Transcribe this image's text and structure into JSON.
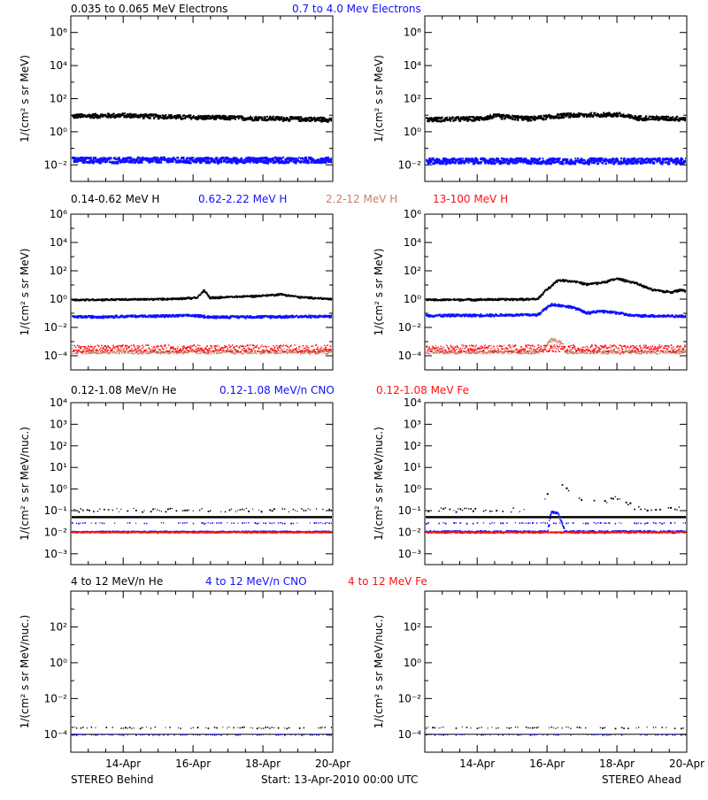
{
  "colors": {
    "black": "#000000",
    "blue": "#1010ff",
    "tan": "#c8806a",
    "red": "#ff1010"
  },
  "headers": [
    [
      {
        "text": "0.035 to 0.065 MeV Electrons",
        "color": "black"
      },
      {
        "text": "0.7 to 4.0 Mev Electrons",
        "color": "blue"
      }
    ],
    [
      {
        "text": "0.14-0.62 MeV H",
        "color": "black"
      },
      {
        "text": "0.62-2.22 MeV H",
        "color": "blue"
      },
      {
        "text": "2.2-12 MeV H",
        "color": "tan"
      },
      {
        "text": "13-100 MeV H",
        "color": "red"
      }
    ],
    [
      {
        "text": "0.12-1.08 MeV/n He",
        "color": "black"
      },
      {
        "text": "0.12-1.08 MeV/n CNO",
        "color": "blue"
      },
      {
        "text": "0.12-1.08 MeV Fe",
        "color": "red"
      }
    ],
    [
      {
        "text": "4 to 12 MeV/n He",
        "color": "black"
      },
      {
        "text": "4 to 12 MeV/n CNO",
        "color": "blue"
      },
      {
        "text": "4 to 12 MeV Fe",
        "color": "red"
      }
    ]
  ],
  "footer": {
    "left": "STEREO Behind",
    "center": "Start: 13-Apr-2010 00:00 UTC",
    "right": "STEREO Ahead"
  },
  "x_ticks": [
    {
      "day": 1.5,
      "label": "14-Apr"
    },
    {
      "day": 3.5,
      "label": "16-Apr"
    },
    {
      "day": 5.5,
      "label": "18-Apr"
    },
    {
      "day": 7.5,
      "label": "20-Apr"
    }
  ],
  "chart_data": [
    {
      "id": "electrons-behind",
      "type": "scatter",
      "row": 0,
      "col": 0,
      "ylabel": "1/(cm² s sr MeV)",
      "ylog_range": [
        -3,
        7
      ],
      "y_ticks": [
        {
          "e": -2,
          "label": "10⁻²"
        },
        {
          "e": 0,
          "label": "10⁰"
        },
        {
          "e": 2,
          "label": "10²"
        },
        {
          "e": 4,
          "label": "10⁴"
        },
        {
          "e": 6,
          "label": "10⁶"
        }
      ],
      "xlim_days": [
        0,
        7.5
      ],
      "series": [
        {
          "color": "black",
          "points": [
            [
              0,
              1.0
            ],
            [
              1.5,
              1.05
            ],
            [
              3,
              0.95
            ],
            [
              4.5,
              0.9
            ],
            [
              6,
              0.85
            ],
            [
              7.5,
              0.8
            ]
          ],
          "scatter": 0.12,
          "width": 2.2
        },
        {
          "color": "blue",
          "points": [
            [
              0,
              -1.65
            ],
            [
              7.5,
              -1.65
            ]
          ],
          "scatter": 0.16,
          "width": 2.6
        }
      ]
    },
    {
      "id": "electrons-ahead",
      "type": "scatter",
      "row": 0,
      "col": 1,
      "ylabel": "1/(cm² s sr MeV)",
      "ylog_range": [
        -3,
        7
      ],
      "y_ticks": [
        {
          "e": -2,
          "label": "10⁻²"
        },
        {
          "e": 0,
          "label": "10⁰"
        },
        {
          "e": 2,
          "label": "10²"
        },
        {
          "e": 4,
          "label": "10⁴"
        },
        {
          "e": 6,
          "label": "10⁶"
        }
      ],
      "xlim_days": [
        0,
        7.5
      ],
      "series": [
        {
          "color": "black",
          "points": [
            [
              0,
              0.8
            ],
            [
              1.5,
              0.85
            ],
            [
              2.0,
              1.0
            ],
            [
              3,
              0.85
            ],
            [
              4,
              1.05
            ],
            [
              5.5,
              1.1
            ],
            [
              6,
              0.9
            ],
            [
              7.5,
              0.85
            ]
          ],
          "scatter": 0.12,
          "width": 2.2
        },
        {
          "color": "blue",
          "points": [
            [
              0,
              -1.7
            ],
            [
              7.5,
              -1.7
            ]
          ],
          "scatter": 0.16,
          "width": 2.6
        }
      ]
    },
    {
      "id": "protons-behind",
      "type": "scatter",
      "row": 1,
      "col": 0,
      "ylabel": "1/(cm² s sr MeV)",
      "ylog_range": [
        -5,
        6
      ],
      "y_ticks": [
        {
          "e": -4,
          "label": "10⁻⁴"
        },
        {
          "e": -2,
          "label": "10⁻²"
        },
        {
          "e": 0,
          "label": "10⁰"
        },
        {
          "e": 2,
          "label": "10²"
        },
        {
          "e": 4,
          "label": "10⁴"
        },
        {
          "e": 6,
          "label": "10⁶"
        }
      ],
      "xlim_days": [
        0,
        7.5
      ],
      "series": [
        {
          "color": "black",
          "points": [
            [
              0,
              0.0
            ],
            [
              2.5,
              0.05
            ],
            [
              3.6,
              0.15
            ],
            [
              3.8,
              0.7
            ],
            [
              3.95,
              0.15
            ],
            [
              5.5,
              0.3
            ],
            [
              6,
              0.4
            ],
            [
              6.5,
              0.2
            ],
            [
              7.5,
              0.05
            ]
          ],
          "scatter": 0.05,
          "width": 1.8
        },
        {
          "color": "blue",
          "points": [
            [
              0,
              -1.2
            ],
            [
              3.5,
              -1.1
            ],
            [
              4,
              -1.2
            ],
            [
              7.5,
              -1.15
            ]
          ],
          "scatter": 0.07,
          "width": 2.0
        },
        {
          "color": "tan",
          "points": [
            [
              0,
              -3.7
            ],
            [
              7.5,
              -3.7
            ]
          ],
          "scatter": 0.12,
          "width": 1.4
        },
        {
          "color": "red",
          "points": [
            [
              0,
              -3.45
            ],
            [
              7.5,
              -3.45
            ]
          ],
          "scatter": 0.25,
          "width": 1.4
        }
      ]
    },
    {
      "id": "protons-ahead",
      "type": "scatter",
      "row": 1,
      "col": 1,
      "ylabel": "1/(cm² s sr MeV)",
      "ylog_range": [
        -5,
        6
      ],
      "y_ticks": [
        {
          "e": -4,
          "label": "10⁻⁴"
        },
        {
          "e": -2,
          "label": "10⁻²"
        },
        {
          "e": 0,
          "label": "10⁰"
        },
        {
          "e": 2,
          "label": "10²"
        },
        {
          "e": 4,
          "label": "10⁴"
        },
        {
          "e": 6,
          "label": "10⁶"
        }
      ],
      "xlim_days": [
        0,
        7.5
      ],
      "series": [
        {
          "color": "black",
          "points": [
            [
              0,
              0.0
            ],
            [
              3.2,
              0.05
            ],
            [
              3.5,
              0.8
            ],
            [
              3.8,
              1.4
            ],
            [
              4.3,
              1.3
            ],
            [
              4.6,
              1.1
            ],
            [
              5.0,
              1.2
            ],
            [
              5.5,
              1.5
            ],
            [
              6,
              1.2
            ],
            [
              6.5,
              0.7
            ],
            [
              7,
              0.55
            ],
            [
              7.3,
              0.7
            ],
            [
              7.5,
              0.6
            ]
          ],
          "scatter": 0.06,
          "width": 1.8
        },
        {
          "color": "blue",
          "points": [
            [
              0,
              -1.1
            ],
            [
              3.2,
              -1.05
            ],
            [
              3.6,
              -0.3
            ],
            [
              4.2,
              -0.5
            ],
            [
              4.6,
              -0.9
            ],
            [
              5.0,
              -0.8
            ],
            [
              5.5,
              -0.9
            ],
            [
              5.9,
              -1.1
            ],
            [
              7.5,
              -1.15
            ]
          ],
          "scatter": 0.07,
          "width": 2.0
        },
        {
          "color": "tan",
          "points": [
            [
              0,
              -3.7
            ],
            [
              3.3,
              -3.7
            ],
            [
              3.6,
              -2.8
            ],
            [
              3.9,
              -3.0
            ],
            [
              4.0,
              -3.7
            ],
            [
              7.5,
              -3.7
            ]
          ],
          "scatter": 0.12,
          "width": 1.4
        },
        {
          "color": "red",
          "points": [
            [
              0,
              -3.45
            ],
            [
              7.5,
              -3.45
            ]
          ],
          "scatter": 0.25,
          "width": 1.4
        }
      ]
    },
    {
      "id": "heavy-low-behind",
      "type": "scatter",
      "row": 2,
      "col": 0,
      "ylabel": "1/(cm² s sr MeV/nuc.)",
      "ylog_range": [
        -3.5,
        4
      ],
      "y_ticks": [
        {
          "e": -3,
          "label": "10⁻³"
        },
        {
          "e": -2,
          "label": "10⁻²"
        },
        {
          "e": -1,
          "label": "10⁻¹"
        },
        {
          "e": 0,
          "label": "10⁰"
        },
        {
          "e": 1,
          "label": "10¹"
        },
        {
          "e": 2,
          "label": "10²"
        },
        {
          "e": 3,
          "label": "10³"
        },
        {
          "e": 4,
          "label": "10⁴"
        }
      ],
      "xlim_days": [
        0,
        7.5
      ],
      "series": [
        {
          "color": "black",
          "points": [
            [
              0,
              -1.3
            ],
            [
              7.5,
              -1.3
            ]
          ],
          "scatter": 0.0,
          "width": 2.5,
          "solid": true
        },
        {
          "color": "black",
          "points": [
            [
              0,
              -0.95
            ],
            [
              7.5,
              -0.95
            ]
          ],
          "scatter": 0.08,
          "width": 1.5,
          "sparse": true
        },
        {
          "color": "blue",
          "points": [
            [
              0,
              -1.95
            ],
            [
              7.5,
              -1.95
            ]
          ],
          "scatter": 0.03,
          "width": 1.6
        },
        {
          "color": "red",
          "points": [
            [
              0,
              -1.97
            ],
            [
              7.5,
              -1.97
            ]
          ],
          "scatter": 0.02,
          "width": 1.6
        },
        {
          "color": "blue",
          "points": [
            [
              0,
              -1.55
            ],
            [
              7.5,
              -1.55
            ]
          ],
          "scatter": 0.02,
          "width": 1.5,
          "sparse": true
        }
      ]
    },
    {
      "id": "heavy-low-ahead",
      "type": "scatter",
      "row": 2,
      "col": 1,
      "ylabel": "1/(cm² s sr MeV/nuc.)",
      "ylog_range": [
        -3.5,
        4
      ],
      "y_ticks": [
        {
          "e": -3,
          "label": "10⁻³"
        },
        {
          "e": -2,
          "label": "10⁻²"
        },
        {
          "e": -1,
          "label": "10⁻¹"
        },
        {
          "e": 0,
          "label": "10⁰"
        },
        {
          "e": 1,
          "label": "10¹"
        },
        {
          "e": 2,
          "label": "10²"
        },
        {
          "e": 3,
          "label": "10³"
        },
        {
          "e": 4,
          "label": "10⁴"
        }
      ],
      "xlim_days": [
        0,
        7.5
      ],
      "series": [
        {
          "color": "black",
          "points": [
            [
              0,
              -1.3
            ],
            [
              7.5,
              -1.3
            ]
          ],
          "scatter": 0.0,
          "width": 2.5,
          "solid": true
        },
        {
          "color": "black",
          "points": [
            [
              0,
              -0.95
            ],
            [
              3.3,
              -0.95
            ],
            [
              3.6,
              0.2
            ],
            [
              3.8,
              0.4
            ],
            [
              4.2,
              -0.2
            ],
            [
              4.6,
              -0.5
            ],
            [
              5.0,
              -0.6
            ],
            [
              5.5,
              -0.4
            ],
            [
              5.8,
              -0.6
            ],
            [
              6.0,
              -0.85
            ],
            [
              7.5,
              -0.9
            ]
          ],
          "scatter": 0.1,
          "width": 1.6,
          "sparse": true
        },
        {
          "color": "blue",
          "points": [
            [
              0,
              -1.95
            ],
            [
              3.5,
              -1.95
            ],
            [
              3.6,
              -1.0
            ],
            [
              3.8,
              -1.1
            ],
            [
              4.0,
              -1.95
            ],
            [
              7.5,
              -1.95
            ]
          ],
          "scatter": 0.05,
          "width": 1.6
        },
        {
          "color": "red",
          "points": [
            [
              0,
              -1.97
            ],
            [
              7.5,
              -1.97
            ]
          ],
          "scatter": 0.02,
          "width": 1.6
        },
        {
          "color": "blue",
          "points": [
            [
              0,
              -1.55
            ],
            [
              7.5,
              -1.55
            ]
          ],
          "scatter": 0.02,
          "width": 1.5,
          "sparse": true
        }
      ]
    },
    {
      "id": "heavy-high-behind",
      "type": "scatter",
      "row": 3,
      "col": 0,
      "ylabel": "1/(cm² s sr MeV/nuc.)",
      "ylog_range": [
        -5,
        4
      ],
      "y_ticks": [
        {
          "e": -4,
          "label": "10⁻⁴"
        },
        {
          "e": -2,
          "label": "10⁻²"
        },
        {
          "e": 0,
          "label": "10⁰"
        },
        {
          "e": 2,
          "label": "10²"
        }
      ],
      "xlim_days": [
        0,
        7.5
      ],
      "series": [
        {
          "color": "black",
          "points": [
            [
              0,
              -4.0
            ],
            [
              7.5,
              -4.0
            ]
          ],
          "scatter": 0.0,
          "width": 1.0,
          "solid": true
        },
        {
          "color": "black",
          "points": [
            [
              0,
              -3.6
            ],
            [
              7.5,
              -3.6
            ]
          ],
          "scatter": 0.04,
          "width": 1.4,
          "sparse": true
        },
        {
          "color": "blue",
          "points": [
            [
              0,
              -4.0
            ],
            [
              7.5,
              -4.0
            ]
          ],
          "scatter": 0.0,
          "width": 1.4,
          "sparse": true
        }
      ]
    },
    {
      "id": "heavy-high-ahead",
      "type": "scatter",
      "row": 3,
      "col": 1,
      "ylabel": "1/(cm² s sr MeV/nuc.)",
      "ylog_range": [
        -5,
        4
      ],
      "y_ticks": [
        {
          "e": -4,
          "label": "10⁻⁴"
        },
        {
          "e": -2,
          "label": "10⁻²"
        },
        {
          "e": 0,
          "label": "10⁰"
        },
        {
          "e": 2,
          "label": "10²"
        }
      ],
      "xlim_days": [
        0,
        7.5
      ],
      "series": [
        {
          "color": "black",
          "points": [
            [
              0,
              -4.0
            ],
            [
              7.5,
              -4.0
            ]
          ],
          "scatter": 0.0,
          "width": 1.0,
          "solid": true
        },
        {
          "color": "black",
          "points": [
            [
              0,
              -3.6
            ],
            [
              7.5,
              -3.6
            ]
          ],
          "scatter": 0.04,
          "width": 1.4,
          "sparse": true
        },
        {
          "color": "blue",
          "points": [
            [
              0,
              -4.0
            ],
            [
              7.5,
              -4.0
            ]
          ],
          "scatter": 0.0,
          "width": 1.4,
          "sparse": true
        }
      ]
    }
  ]
}
